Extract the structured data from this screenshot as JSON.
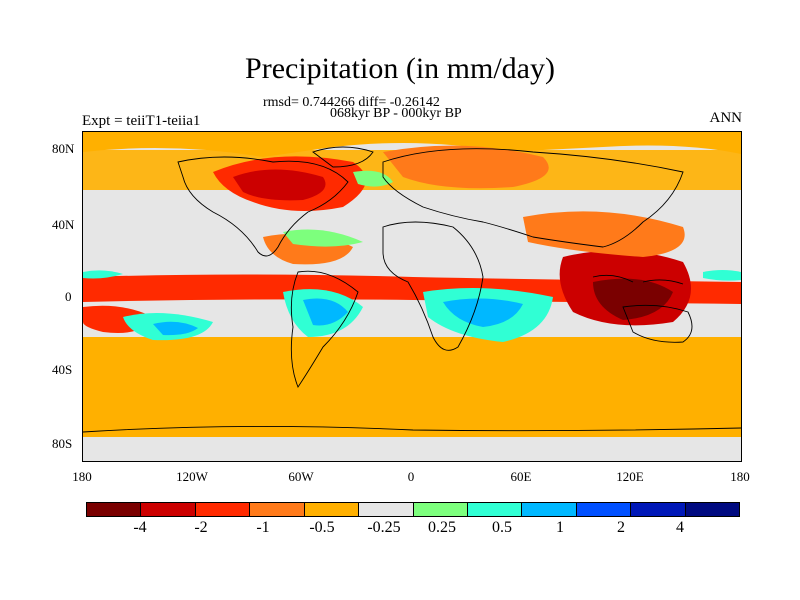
{
  "title": "Precipitation (in mm/day)",
  "stats": {
    "line1": "rmsd= 0.744266 diff= -0.26142",
    "line2": "068kyr BP - 000kyr BP"
  },
  "left_label": "Expt = teiiT1-teiia1",
  "right_label": "ANN",
  "y_ticks": [
    "80N",
    "40N",
    "0",
    "40S",
    "80S"
  ],
  "x_ticks": [
    "180",
    "120W",
    "60W",
    "0",
    "60E",
    "120E",
    "180"
  ],
  "colorbar": {
    "colors": [
      "#7a0000",
      "#cc0000",
      "#ff2a00",
      "#ff7a1a",
      "#ffb000",
      "#e6e6e6",
      "#7dff7d",
      "#30ffd4",
      "#00b8ff",
      "#0050ff",
      "#0018b8",
      "#000a80"
    ],
    "labels": [
      "-4",
      "-2",
      "-1",
      "-0.5",
      "-0.25",
      "0.25",
      "0.5",
      "1",
      "2",
      "4"
    ]
  }
}
